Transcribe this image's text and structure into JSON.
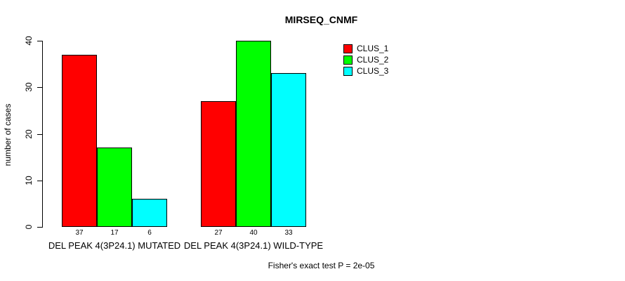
{
  "chart_data": {
    "type": "bar",
    "title": "MIRSEQ_CNMF",
    "ylabel": "number of cases",
    "xlabel": "",
    "ylim": [
      0,
      40
    ],
    "yticks": [
      0,
      10,
      20,
      30,
      40
    ],
    "grid": false,
    "legend_position": "top-right",
    "background_color": "#ffffff",
    "categories": [
      "DEL PEAK 4(3P24.1) MUTATED",
      "DEL PEAK 4(3P24.1) WILD-TYPE"
    ],
    "series": [
      {
        "name": "CLUS_1",
        "color": "#ff0000",
        "values": [
          37,
          27
        ]
      },
      {
        "name": "CLUS_2",
        "color": "#00ff00",
        "values": [
          17,
          40
        ]
      },
      {
        "name": "CLUS_3",
        "color": "#00ffff",
        "values": [
          6,
          33
        ]
      }
    ],
    "show_bar_values": true,
    "annotation": "Fisher's exact test P = 2e-05"
  }
}
